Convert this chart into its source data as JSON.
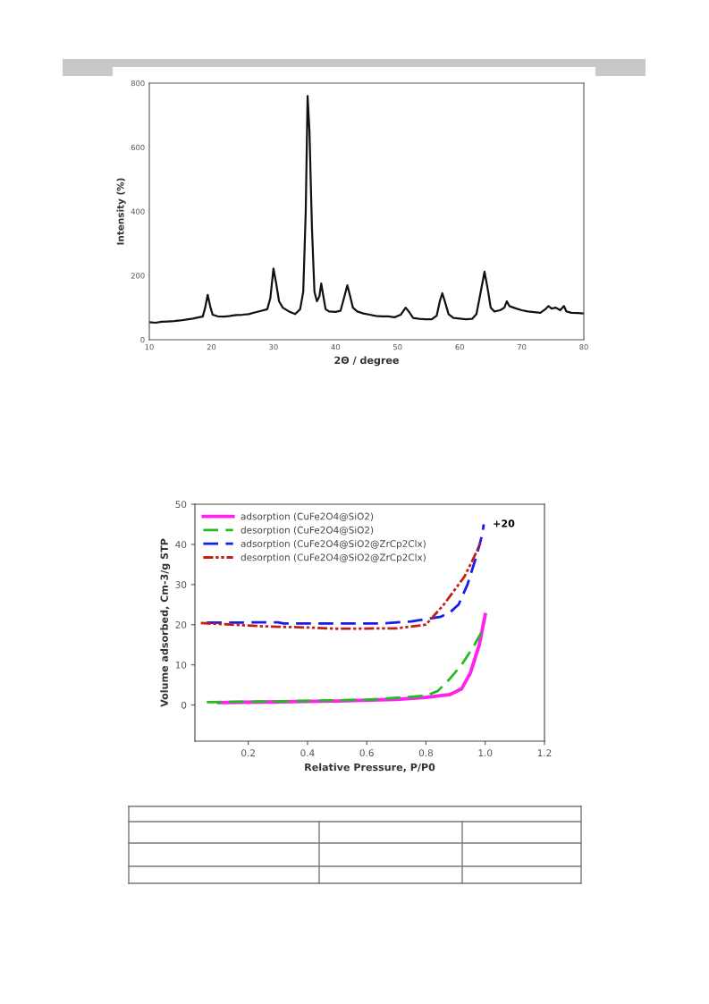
{
  "chart_data": [
    {
      "type": "line",
      "xlabel": "2Θ / degree",
      "ylabel": "Intensity (%)",
      "xlim": [
        10,
        80
      ],
      "xticks": [
        10,
        20,
        30,
        40,
        50,
        60,
        70,
        80
      ],
      "ylim": [
        0,
        800
      ],
      "yticks": [
        0,
        200,
        400,
        600,
        800
      ],
      "grid": false,
      "legend": false,
      "marker": "none",
      "line_style": "solid",
      "series": [
        {
          "color": "#111111",
          "x": [
            10,
            11,
            12,
            13,
            14,
            15,
            16,
            17,
            18,
            18.6,
            19.0,
            19.4,
            19.8,
            20.2,
            21,
            22,
            23,
            24,
            25,
            26,
            27,
            28,
            29,
            29.5,
            30.0,
            30.4,
            30.9,
            31.5,
            32.5,
            33.5,
            34.3,
            34.8,
            35.2,
            35.5,
            35.8,
            36.2,
            36.6,
            37.0,
            37.4,
            37.7,
            38.0,
            38.4,
            39,
            40,
            40.8,
            41.5,
            41.9,
            42.3,
            42.8,
            43.5,
            44.5,
            45.5,
            46.5,
            47.5,
            48.5,
            49.5,
            50.5,
            51.3,
            51.8,
            52.5,
            53.5,
            54.5,
            55.5,
            56.3,
            56.8,
            57.2,
            57.6,
            58.2,
            59,
            60,
            61,
            62,
            62.7,
            63.3,
            64.0,
            64.5,
            65,
            65.6,
            66.5,
            67.2,
            67.6,
            68,
            69,
            70,
            71,
            72,
            73,
            73.8,
            74.3,
            74.8,
            75.5,
            76.2,
            76.8,
            77.2,
            78,
            79,
            80
          ],
          "values": [
            55,
            53,
            56,
            57,
            58,
            60,
            63,
            66,
            70,
            72,
            100,
            140,
            105,
            78,
            73,
            72,
            74,
            77,
            78,
            80,
            85,
            90,
            95,
            130,
            222,
            180,
            120,
            100,
            88,
            80,
            95,
            150,
            400,
            760,
            650,
            350,
            150,
            120,
            135,
            175,
            140,
            95,
            88,
            87,
            90,
            140,
            170,
            140,
            100,
            88,
            82,
            78,
            74,
            73,
            73,
            70,
            78,
            100,
            88,
            68,
            65,
            64,
            64,
            75,
            120,
            145,
            120,
            80,
            68,
            66,
            64,
            65,
            80,
            140,
            212,
            160,
            100,
            88,
            92,
            100,
            120,
            105,
            98,
            92,
            88,
            86,
            84,
            95,
            105,
            97,
            100,
            92,
            105,
            88,
            84,
            83,
            82
          ]
        }
      ]
    },
    {
      "type": "line",
      "xlabel": "Relative Pressure, P/P0",
      "ylabel": "Volume adsorbed, Cm-3/g STP",
      "xlim": [
        0.02,
        1.2
      ],
      "xticks": [
        {
          "value": 0.2,
          "label": "0.2"
        },
        {
          "value": 0.4,
          "label": "0.4"
        },
        {
          "value": 0.6,
          "label": "0.6"
        },
        {
          "value": 0.8,
          "label": "0.8"
        },
        {
          "value": 1.0,
          "label": "1.0"
        },
        {
          "value": 1.2,
          "label": "1.2"
        }
      ],
      "ylim": [
        -9,
        50
      ],
      "yticks": [
        0,
        10,
        20,
        30,
        40,
        50
      ],
      "grid": false,
      "legend": "top left",
      "marker": "none",
      "annotations": [
        {
          "text": "+20",
          "x": 1.0,
          "y": 45
        }
      ],
      "series": [
        {
          "name": "adsorption (CuFe2O4@SiO2)",
          "color": "#ff22ee",
          "line_style": "solid",
          "x": [
            0.1,
            0.3,
            0.5,
            0.7,
            0.8,
            0.88,
            0.92,
            0.95,
            0.98,
            1.0
          ],
          "values": [
            0.6,
            0.8,
            1.0,
            1.4,
            1.9,
            2.6,
            4,
            8,
            15,
            22.5
          ]
        },
        {
          "name": "desorption (CuFe2O4@SiO2)",
          "color": "#22bb22",
          "line_style": "dashed",
          "x": [
            0.06,
            0.3,
            0.6,
            0.8,
            0.84,
            0.88,
            0.92,
            0.96,
            0.99
          ],
          "values": [
            0.7,
            0.9,
            1.3,
            2.3,
            3.5,
            6.5,
            10,
            14.5,
            18.5
          ]
        },
        {
          "name": "adsorption (CuFe2O4@SiO2@ZrCp2Clx)",
          "color": "#1a1aee",
          "line_style": "dashed",
          "x": [
            0.06,
            0.3,
            0.32,
            0.65,
            0.75,
            0.8,
            0.85,
            0.88,
            0.91,
            0.94,
            0.97,
            0.99,
            0.995
          ],
          "values": [
            20.5,
            20.6,
            20.3,
            20.3,
            20.8,
            21.4,
            22,
            23,
            25,
            30,
            37,
            42.5,
            45
          ]
        },
        {
          "name": "desorption (CuFe2O4@SiO2@ZrCp2Clx)",
          "color": "#c0201a",
          "line_style": "dashdotdot",
          "x": [
            0.04,
            0.15,
            0.25,
            0.4,
            0.5,
            0.7,
            0.78,
            0.8,
            0.83,
            0.86,
            0.9,
            0.93,
            0.96,
            0.985
          ],
          "values": [
            20.4,
            20.0,
            19.6,
            19.3,
            19.0,
            19.1,
            19.8,
            20.0,
            22.5,
            25,
            29,
            32,
            36.5,
            40.5
          ]
        }
      ]
    }
  ]
}
